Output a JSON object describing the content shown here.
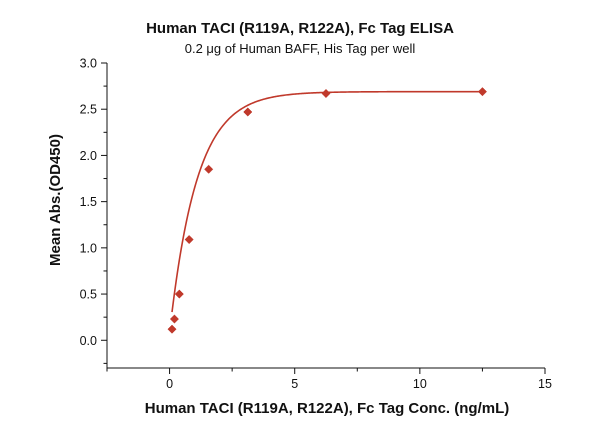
{
  "chart_data": {
    "type": "scatter",
    "title": "Human TACI (R119A, R122A), Fc Tag ELISA",
    "subtitle": "0.2 μg of Human BAFF, His Tag per well",
    "xlabel": "Human TACI (R119A, R122A), Fc Tag Conc. (ng/mL)",
    "ylabel": "Mean Abs.(OD450)",
    "xlim": [
      -2.5,
      15
    ],
    "ylim": [
      -0.3,
      3.0
    ],
    "x_ticks": [
      0,
      5,
      10,
      15
    ],
    "y_ticks": [
      0.0,
      0.5,
      1.0,
      1.5,
      2.0,
      2.5,
      3.0
    ],
    "x_tick_labels": [
      "0",
      "5",
      "10",
      "15"
    ],
    "y_tick_labels": [
      "0.0",
      "0.5",
      "1.0",
      "1.5",
      "2.0",
      "2.5",
      "3.0"
    ],
    "grid": false,
    "legend": "none",
    "series": [
      {
        "marker": "diamond",
        "color": "#c0392b",
        "x": [
          0.098,
          0.195,
          0.391,
          0.781,
          1.563,
          3.125,
          6.25,
          12.5
        ],
        "y": [
          0.12,
          0.23,
          0.5,
          1.09,
          1.85,
          2.47,
          2.67,
          2.69
        ]
      }
    ],
    "fit_curve": {
      "color": "#c0392b",
      "model": "saturation",
      "bottom": 0.08,
      "top": 2.69,
      "rate": 0.92
    }
  }
}
